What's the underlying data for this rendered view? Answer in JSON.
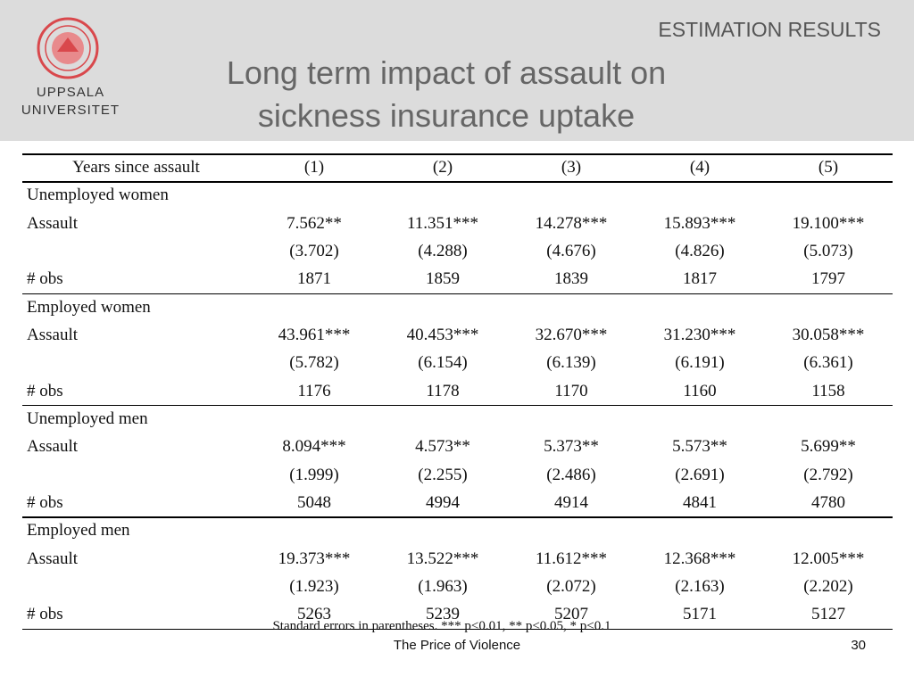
{
  "header": {
    "logo_text": [
      "UPPSALA",
      "UNIVERSITET"
    ],
    "section": "ESTIMATION RESULTS",
    "title": [
      "Long term impact of assault on",
      "sickness insurance uptake"
    ]
  },
  "table": {
    "columns": [
      "Years since assault",
      "(1)",
      "(2)",
      "(3)",
      "(4)",
      "(5)"
    ],
    "groups": [
      {
        "name": "Unemployed women",
        "estimate_label": "Assault",
        "estimates": [
          "7.562**",
          "11.351***",
          "14.278***",
          "15.893***",
          "19.100***"
        ],
        "errors": [
          "(3.702)",
          "(4.288)",
          "(4.676)",
          "(4.826)",
          "(5.073)"
        ],
        "obs_label": "# obs",
        "obs": [
          "1871",
          "1859",
          "1839",
          "1817",
          "1797"
        ]
      },
      {
        "name": "Employed women",
        "estimate_label": "Assault",
        "estimates": [
          "43.961***",
          "40.453***",
          "32.670***",
          "31.230***",
          "30.058***"
        ],
        "errors": [
          "(5.782)",
          "(6.154)",
          "(6.139)",
          "(6.191)",
          "(6.361)"
        ],
        "obs_label": "# obs",
        "obs": [
          "1176",
          "1178",
          "1170",
          "1160",
          "1158"
        ]
      },
      {
        "name": "Unemployed men",
        "estimate_label": "Assault",
        "estimates": [
          "8.094***",
          "4.573**",
          "5.373**",
          "5.573**",
          "5.699**"
        ],
        "errors": [
          "(1.999)",
          "(2.255)",
          "(2.486)",
          "(2.691)",
          "(2.792)"
        ],
        "obs_label": "# obs",
        "obs": [
          "5048",
          "4994",
          "4914",
          "4841",
          "4780"
        ]
      },
      {
        "name": "Employed men",
        "estimate_label": "Assault",
        "estimates": [
          "19.373***",
          "13.522***",
          "11.612***",
          "12.368***",
          "12.005***"
        ],
        "errors": [
          "(1.923)",
          "(1.963)",
          "(2.072)",
          "(2.163)",
          "(2.202)"
        ],
        "obs_label": "# obs",
        "obs": [
          "5263",
          "5239",
          "5207",
          "5171",
          "5127"
        ]
      }
    ],
    "note": "Standard errors in parentheses. *** p<0.01, ** p<0.05, * p<0.1"
  },
  "footer": {
    "text": "The Price of Violence",
    "page": "30"
  }
}
